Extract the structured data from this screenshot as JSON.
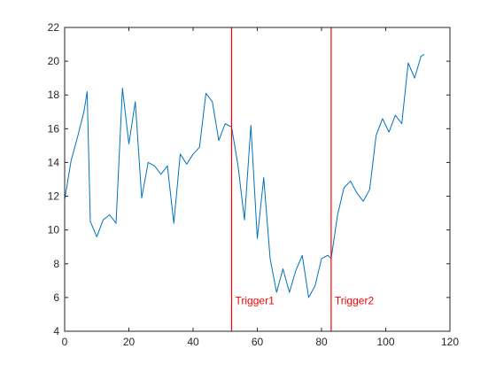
{
  "chart_data": {
    "type": "line",
    "title": "",
    "xlabel": "",
    "ylabel": "",
    "xlim": [
      0,
      120
    ],
    "ylim": [
      4,
      22
    ],
    "xticks": [
      0,
      20,
      40,
      60,
      80,
      100,
      120
    ],
    "yticks": [
      4,
      6,
      8,
      10,
      12,
      14,
      16,
      18,
      20,
      22
    ],
    "grid": false,
    "legend": "none",
    "series": [
      {
        "color": "#0072BD",
        "x": [
          0,
          2,
          4,
          6,
          7,
          8,
          10,
          12,
          14,
          16,
          18,
          20,
          22,
          24,
          26,
          28,
          30,
          32,
          34,
          36,
          38,
          40,
          42,
          44,
          46,
          48,
          50,
          52,
          54,
          56,
          58,
          60,
          62,
          64,
          66,
          68,
          70,
          72,
          74,
          76,
          78,
          80,
          82,
          83,
          85,
          87,
          89,
          91,
          93,
          95,
          97,
          99,
          101,
          103,
          105,
          107,
          109,
          111,
          112
        ],
        "y": [
          11.8,
          14.1,
          15.5,
          17.0,
          18.2,
          10.5,
          9.6,
          10.6,
          10.9,
          10.4,
          18.4,
          15.1,
          17.6,
          11.9,
          14.0,
          13.8,
          13.3,
          13.8,
          10.4,
          14.5,
          13.9,
          14.5,
          14.9,
          18.1,
          17.6,
          15.3,
          16.3,
          16.1,
          13.8,
          10.6,
          16.2,
          9.5,
          13.1,
          8.3,
          6.3,
          7.7,
          6.3,
          7.6,
          8.5,
          6.0,
          6.7,
          8.3,
          8.5,
          8.3,
          10.9,
          12.5,
          12.9,
          12.2,
          11.7,
          12.4,
          15.6,
          16.6,
          15.8,
          16.8,
          16.3,
          19.9,
          19.0,
          20.3,
          20.4
        ]
      }
    ],
    "vlines": [
      {
        "x": 52,
        "color": "#FF0000",
        "label": "Trigger1"
      },
      {
        "x": 83,
        "color": "#FF0000",
        "label": "Trigger2"
      }
    ]
  }
}
